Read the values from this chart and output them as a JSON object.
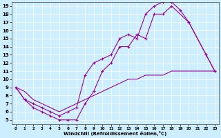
{
  "title": "",
  "xlabel": "Windchill (Refroidissement éolien,°C)",
  "bg_color": "#cceeff",
  "line_color": "#990099",
  "xlim": [
    -0.5,
    23.5
  ],
  "ylim": [
    4.5,
    19.5
  ],
  "xticks": [
    0,
    1,
    2,
    3,
    4,
    5,
    6,
    7,
    8,
    9,
    10,
    11,
    12,
    13,
    14,
    15,
    16,
    17,
    18,
    19,
    20,
    21,
    22,
    23
  ],
  "yticks": [
    5,
    6,
    7,
    8,
    9,
    10,
    11,
    12,
    13,
    14,
    15,
    16,
    17,
    18,
    19
  ],
  "line1_x": [
    0,
    1,
    2,
    3,
    4,
    5,
    6,
    7,
    8,
    9,
    10,
    11,
    12,
    13,
    14,
    15,
    16,
    17,
    18,
    20,
    22,
    23
  ],
  "line1_y": [
    9,
    7.5,
    6.5,
    6,
    5.5,
    5,
    5,
    5,
    7,
    8.5,
    11,
    12,
    14,
    14,
    15.5,
    15,
    18,
    18,
    19,
    17,
    13,
    11
  ],
  "line2_x": [
    0,
    1,
    2,
    3,
    4,
    5,
    6,
    7,
    8,
    9,
    10,
    11,
    12,
    13,
    14,
    15,
    16,
    17,
    18,
    19,
    20,
    22,
    23
  ],
  "line2_y": [
    9,
    7.5,
    7,
    6.5,
    6,
    5.5,
    6,
    6.5,
    10.5,
    12,
    12.5,
    13,
    15,
    15.5,
    15,
    18,
    19,
    19.5,
    19.5,
    18.5,
    17,
    13,
    11
  ],
  "line3_x": [
    0,
    1,
    2,
    3,
    4,
    5,
    6,
    7,
    8,
    9,
    10,
    11,
    12,
    13,
    14,
    15,
    16,
    17,
    18,
    19,
    20,
    21,
    22,
    23
  ],
  "line3_y": [
    9,
    8.5,
    7.5,
    7,
    6.5,
    6,
    6.5,
    7,
    7.5,
    8,
    8.5,
    9,
    9.5,
    10,
    10,
    10.5,
    10.5,
    10.5,
    11,
    11,
    11,
    11,
    11,
    11
  ]
}
